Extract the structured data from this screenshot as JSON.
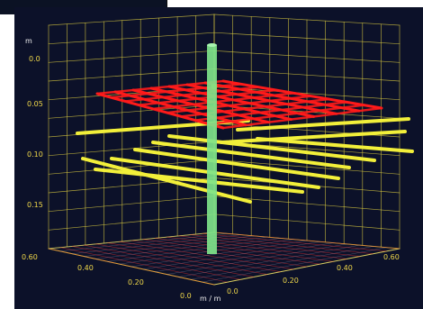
{
  "scene": {
    "vertical_axis": {
      "name": "m",
      "ticks": [
        "0.0",
        "0.05",
        "0.10",
        "0.15",
        "0.60"
      ]
    },
    "left_axis": {
      "ticks": [
        "0.40",
        "0.20",
        "0.0"
      ]
    },
    "right_axis": {
      "name": "m / m",
      "ticks": [
        "0.0",
        "0.20",
        "0.40",
        "0.60"
      ]
    },
    "colors": {
      "background": "#0c1129",
      "grid": "#e0d040",
      "red_layer": "#ff1a1a",
      "yellow_lines": "#f2ef3a",
      "green_column": "#7fe38a",
      "floor_mesh": "#ff3030"
    }
  }
}
